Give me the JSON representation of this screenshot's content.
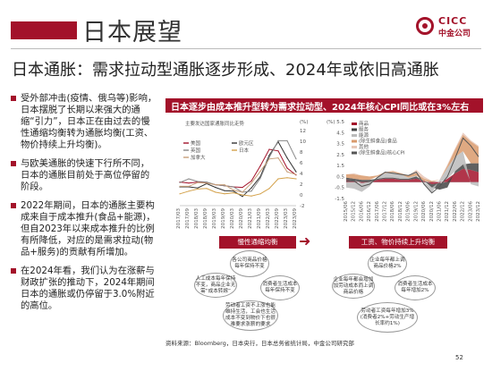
{
  "header": {
    "title": "日本展望",
    "logo_en": "CICC",
    "logo_cn": "中金公司",
    "accent": "#a3122a"
  },
  "subtitle": "日本通胀：需求拉动型通胀逐步形成、2024年或依旧高通胀",
  "bullets": [
    "受外部冲击(疫情、俄乌等)影响，日本摆脱了长期以来强大的通缩“引力”，日本正在由过去的慢性通缩均衡转为通胀均衡(工资、物价持续上升均衡)。",
    "与欧美通胀的快速下行所不同，日本的通胀目前处于高位停留的阶段。",
    "2022年期间，日本的通胀主要构成来自于成本推升(食品+能源)，但自2023年以来成本推升的比例有所降低，对应的是需求拉动(物品+服务)的贡献有所增加。",
    "在2024年看，我们认为在涨薪与财政扩张的推动下，2024年期间日本的通胀或仍停留于3.0%附近的高位。"
  ],
  "panel": {
    "title": "日本逐步由成本推升型转为需求拉动型、2024年核心CPI同比或在3%左右",
    "chart1_title": "主要发达国家通胀同比走势",
    "chart1_unit": "(%)",
    "chart2_unit": "(%)",
    "legend1": [
      "美国",
      "欧元区",
      "英国",
      "日本",
      "加拿大"
    ],
    "legend2": [
      "商品",
      "服务",
      "能源",
      "(除生鲜食品)食品",
      "其他",
      "(除生鲜食品)核心CPI"
    ],
    "left_box": "慢性通缩均衡",
    "right_box": "工资、物价持续上升均衡",
    "left_circles": [
      "各公司商品价格每年保持不变",
      "人工成本每年保持不变，商品企业无需“成本转嫁”",
      "消费者生活成本每年保持不变",
      "劳动者工资不上涨也能维持生活，工会也生活成本不变到物价下也很难要求涨薪的要求"
    ],
    "right_circles": [
      "企业每年都上调商品价格2%",
      "企业每年都会增加加劳动成本而上调商品价格",
      "消费者生活成本每年增加2%",
      "劳动者工资每年增加3%(消费者2%+劳动生产增长率约1%)"
    ],
    "arrow": "➜",
    "source": "资料来源：Bloomberg，日本央行，日本总务省统计局，中金公司研究部",
    "page_number": "52"
  },
  "chart_data": [
    {
      "type": "line",
      "title": "主要发达国家通胀同比走势",
      "ylabel": "(%)",
      "ylim": [
        -2,
        12
      ],
      "x": [
        "2017/03",
        "2017/09",
        "2018/03",
        "2018/09",
        "2019/03",
        "2019/09",
        "2020/03",
        "2020/09",
        "2021/03",
        "2021/09",
        "2022/03",
        "2022/09",
        "2023/03",
        "2023/09"
      ],
      "series": [
        {
          "name": "美国",
          "color": "#a3122a",
          "values": [
            2.4,
            2.2,
            2.4,
            2.3,
            1.9,
            1.7,
            1.5,
            1.4,
            2.6,
            5.4,
            8.5,
            8.2,
            5.0,
            3.7
          ]
        },
        {
          "name": "欧元区",
          "color": "#333333",
          "values": [
            1.5,
            1.5,
            1.3,
            2.1,
            1.4,
            0.8,
            0.7,
            -0.3,
            1.3,
            3.4,
            7.4,
            9.9,
            6.9,
            4.3
          ]
        },
        {
          "name": "英国",
          "color": "#888888",
          "values": [
            2.3,
            3.0,
            2.5,
            2.4,
            1.9,
            1.7,
            1.5,
            0.5,
            0.7,
            3.1,
            7.0,
            10.1,
            10.1,
            6.7
          ]
        },
        {
          "name": "日本",
          "color": "#d4a24c",
          "values": [
            0.2,
            0.7,
            1.1,
            1.2,
            0.5,
            0.2,
            0.4,
            0.0,
            -0.2,
            0.2,
            1.2,
            3.0,
            3.2,
            3.0
          ]
        },
        {
          "name": "加拿大",
          "color": "#c8a07a",
          "values": [
            1.6,
            1.6,
            2.3,
            2.2,
            1.9,
            1.9,
            0.9,
            0.5,
            2.2,
            4.4,
            6.7,
            6.9,
            4.3,
            3.8
          ]
        }
      ]
    },
    {
      "type": "area",
      "ylabel": "(%)",
      "ylim": [
        -1.5,
        5.5
      ],
      "categories": [
        "2015/06",
        "2015/12",
        "2016/06",
        "2016/12",
        "2017/06",
        "2017/12",
        "2018/06",
        "2018/12",
        "2019/06",
        "2019/12",
        "2020/06",
        "2020/12",
        "2021/06",
        "2021/12",
        "2022/06",
        "2022/12",
        "2023/06",
        "2023/12"
      ],
      "series": [
        {
          "name": "商品",
          "color": "#a3122a",
          "values": [
            0.2,
            0.1,
            -0.1,
            0.0,
            0.2,
            0.3,
            0.3,
            0.2,
            0.2,
            0.3,
            0.1,
            -0.2,
            -0.1,
            0.3,
            0.8,
            1.2,
            1.1,
            0.9
          ]
        },
        {
          "name": "服务",
          "color": "#444444",
          "values": [
            0.2,
            0.2,
            0.2,
            0.2,
            0.1,
            0.1,
            0.1,
            0.1,
            0.1,
            0.2,
            0.0,
            -0.3,
            -0.6,
            -0.5,
            0.2,
            0.4,
            0.6,
            0.8
          ]
        },
        {
          "name": "能源",
          "color": "#bbbbbb",
          "values": [
            -0.5,
            -0.6,
            -0.8,
            -0.4,
            0.2,
            0.4,
            0.5,
            0.4,
            0.1,
            0.1,
            -0.2,
            -0.5,
            0.2,
            1.0,
            1.3,
            1.2,
            -0.2,
            -0.4
          ]
        },
        {
          "name": "(除生鲜食品)食品",
          "color": "#d99a6c",
          "values": [
            0.3,
            0.4,
            0.4,
            0.3,
            0.1,
            0.1,
            0.1,
            0.1,
            0.2,
            0.2,
            0.2,
            0.1,
            0.0,
            0.2,
            0.7,
            1.5,
            2.0,
            1.5
          ]
        },
        {
          "name": "其他",
          "color": "#e7c7b8",
          "values": [
            0.0,
            0.1,
            0.0,
            0.0,
            0.0,
            0.0,
            0.0,
            0.0,
            0.0,
            0.3,
            0.2,
            0.0,
            0.0,
            0.1,
            0.1,
            0.2,
            0.1,
            0.1
          ]
        }
      ],
      "line": {
        "name": "(除生鲜食品)核心CPI",
        "color": "#555555",
        "values": [
          0.1,
          0.1,
          -0.4,
          -0.2,
          0.4,
          0.9,
          0.8,
          0.7,
          0.6,
          0.9,
          -0.2,
          -1.0,
          -0.4,
          0.5,
          2.2,
          4.0,
          3.3,
          2.3
        ]
      }
    }
  ]
}
